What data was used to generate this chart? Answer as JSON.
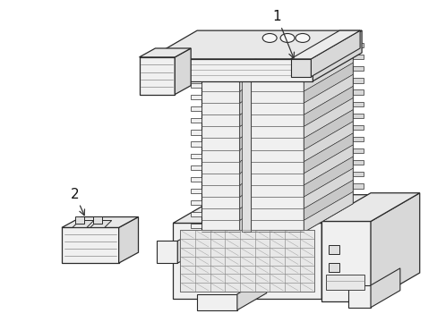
{
  "background_color": "#ffffff",
  "line_color": "#2a2a2a",
  "face_light": "#f0f0f0",
  "face_mid": "#d8d8d8",
  "face_dark": "#c0c0c0",
  "label1": "1",
  "label2": "2",
  "fig_width": 4.89,
  "fig_height": 3.6,
  "dpi": 100
}
